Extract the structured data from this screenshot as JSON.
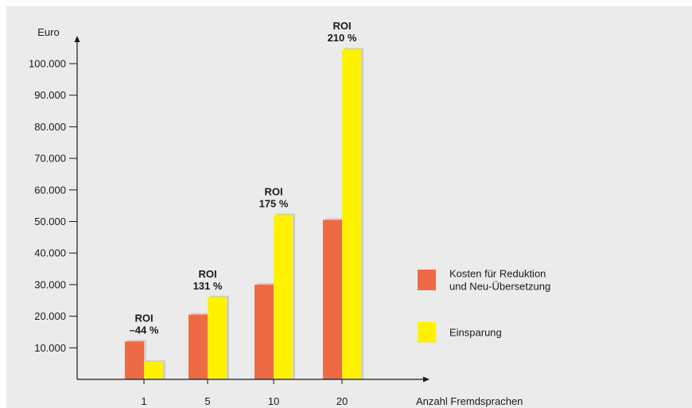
{
  "colors": {
    "background": "#ebebeb",
    "kosten": "#ee6a45",
    "einsparung": "#fff200",
    "axis": "#1a1a1a"
  },
  "chart_data": {
    "type": "bar",
    "categories": [
      "1",
      "5",
      "10",
      "20"
    ],
    "series": [
      {
        "name": "Kosten für Reduktion und Neu-Übersetzung",
        "legend_lines": [
          "Kosten für Reduktion",
          "und Neu-Übersetzung"
        ],
        "values": [
          12000,
          20500,
          30000,
          50500
        ],
        "color": "#ee6a45"
      },
      {
        "name": "Einsparung",
        "legend_lines": [
          "Einsparung"
        ],
        "values": [
          5500,
          26000,
          52000,
          104500
        ],
        "color": "#fff200"
      }
    ],
    "roi": [
      {
        "title": "ROI",
        "value": "–44 %"
      },
      {
        "title": "ROI",
        "value": "131 %"
      },
      {
        "title": "ROI",
        "value": "175 %"
      },
      {
        "title": "ROI",
        "value": "210 %"
      }
    ],
    "ylabel": "Euro",
    "xlabel": "Anzahl Fremdsprachen",
    "yticks": [
      10000,
      20000,
      30000,
      40000,
      50000,
      60000,
      70000,
      80000,
      90000,
      100000
    ],
    "ytick_labels": [
      "10.000",
      "20.000",
      "30.000",
      "40.000",
      "50.000",
      "60.000",
      "70.000",
      "80.000",
      "90.000",
      "100.000"
    ],
    "ylim": [
      0,
      110000
    ],
    "grid": false,
    "legend": "right"
  }
}
